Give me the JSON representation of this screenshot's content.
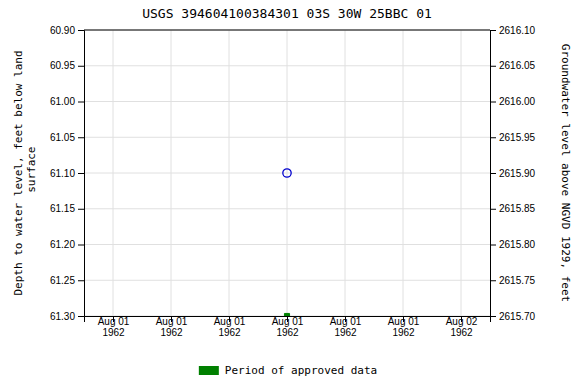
{
  "chart_data": {
    "type": "scatter",
    "title": "USGS 394604100384301 03S 30W 25BBC 01",
    "y_label": "Depth to water level, feet below land\n surface",
    "y2_label": "Groundwater level above NGVD 1929, feet",
    "categories": [
      "Aug 01\n1962",
      "Aug 01\n1962",
      "Aug 01\n1962",
      "Aug 01\n1962",
      "Aug 01\n1962",
      "Aug 01\n1962",
      "Aug 02\n1962"
    ],
    "series": [
      {
        "values": [
          null,
          null,
          null,
          61.1,
          null,
          null,
          null
        ],
        "color": "#0000cd",
        "marker": "circle"
      },
      {
        "name": "Period of approved data",
        "values": [
          null,
          null,
          null,
          61.3,
          null,
          null,
          null
        ],
        "color": "#008000",
        "marker": "square"
      }
    ],
    "ylim": [
      61.3,
      60.9
    ],
    "yticks": [
      {
        "value": 60.9,
        "label": "60.90"
      },
      60.95,
      {
        "value": 61.0,
        "label": "61.00"
      },
      61.05,
      {
        "value": 61.1,
        "label": "61.10"
      },
      61.15,
      {
        "value": 61.2,
        "label": "61.20"
      },
      61.25,
      {
        "value": 61.3,
        "label": "61.30"
      }
    ],
    "y2lim": [
      2615.7,
      2616.1
    ],
    "y2ticks": [
      {
        "value": 2616.1,
        "label": "2616.10"
      },
      2616.05,
      {
        "value": 2616.0,
        "label": "2616.00"
      },
      2615.95,
      {
        "value": 2615.9,
        "label": "2615.90"
      },
      2615.85,
      {
        "value": 2615.8,
        "label": "2615.80"
      },
      2615.75,
      {
        "value": 2615.7,
        "label": "2615.70"
      }
    ],
    "grid": true,
    "legend": "bottom"
  }
}
